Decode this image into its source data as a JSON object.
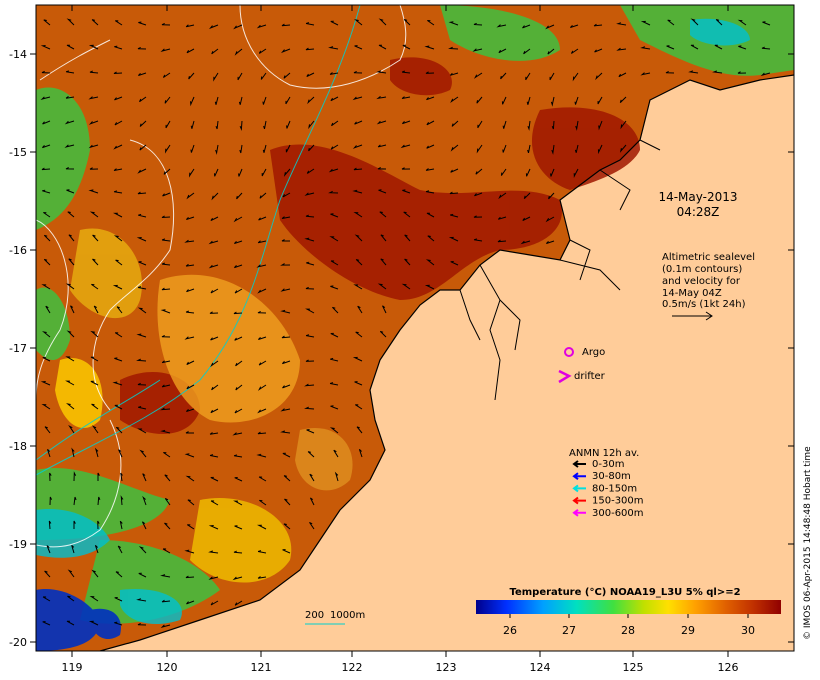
{
  "axes": {
    "x_ticks": [
      "119",
      "120",
      "121",
      "122",
      "123",
      "124",
      "125",
      "126"
    ],
    "y_ticks": [
      "-14",
      "-15",
      "-16",
      "-17",
      "-18",
      "-19",
      "-20"
    ]
  },
  "timestamp": {
    "date": "14-May-2013",
    "time": "04:28Z"
  },
  "altimetry_note": [
    "Altimetric sealevel",
    "(0.1m contours)",
    "and velocity for",
    "14-May 04Z",
    "0.5m/s (1kt 24h)"
  ],
  "markers": {
    "argo_label": "Argo",
    "drifter_label": "drifter"
  },
  "anmn_legend": {
    "title": "ANMN 12h av.",
    "items": [
      {
        "label": "0-30m",
        "color": "#000000"
      },
      {
        "label": "30-80m",
        "color": "#0000ff"
      },
      {
        "label": "80-150m",
        "color": "#00e0e0"
      },
      {
        "label": "150-300m",
        "color": "#ff0000"
      },
      {
        "label": "300-600m",
        "color": "#ff00ff"
      }
    ]
  },
  "depth_labels": {
    "shallow": "200",
    "deep": "1000m"
  },
  "colorbar": {
    "title": "Temperature (°C) NOAA19_L3U 5% ql>=2",
    "ticks": [
      "26",
      "27",
      "28",
      "29",
      "30"
    ],
    "colors": [
      "#00008b",
      "#0040ff",
      "#00a0ff",
      "#00e0c0",
      "#40e040",
      "#c0e000",
      "#ffe000",
      "#ffa000",
      "#e06000",
      "#c03000",
      "#900000"
    ]
  },
  "credit": "© IMOS 06-Apr-2015 14:48:48 Hobart time",
  "colors": {
    "land": "#ffcc99",
    "ocean_warm": "#c04000",
    "ocean_mid": "#e09000"
  }
}
